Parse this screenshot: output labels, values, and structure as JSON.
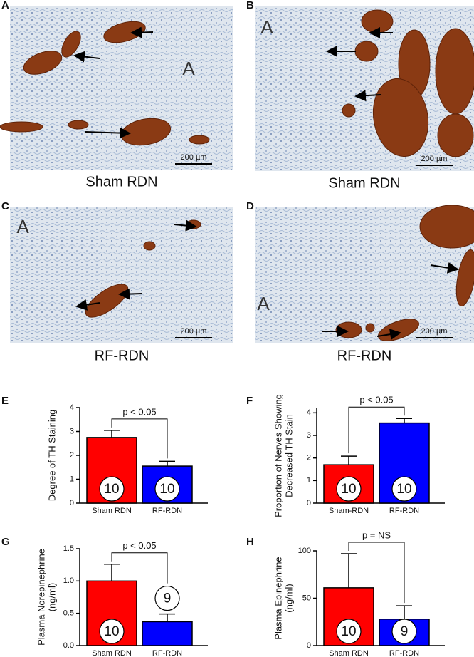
{
  "panels": [
    {
      "letter": "A",
      "caption": "Sham RDN",
      "scale_bar": "200 µm",
      "region_label": "A"
    },
    {
      "letter": "B",
      "caption": "Sham RDN",
      "scale_bar": "200 µm",
      "region_label": "A"
    },
    {
      "letter": "C",
      "caption": "RF-RDN",
      "scale_bar": "200 µm",
      "region_label": "A"
    },
    {
      "letter": "D",
      "caption": "RF-RDN",
      "scale_bar": "200 µm",
      "region_label": "A"
    }
  ],
  "chart_data": [
    {
      "type": "bar",
      "letter": "E",
      "ylabel": [
        "Degree of TH Staining"
      ],
      "categories": [
        "Sham RDN",
        "RF-RDN"
      ],
      "values": [
        2.75,
        1.55
      ],
      "errors": [
        0.3,
        0.2
      ],
      "n": [
        10,
        10
      ],
      "colors": [
        "#ff0000",
        "#0000ff"
      ],
      "annotation": "p < 0.05",
      "ylim": [
        0,
        4
      ],
      "yticks": [
        0,
        1,
        2,
        3,
        4
      ]
    },
    {
      "type": "bar",
      "letter": "F",
      "ylabel": [
        "Proportion of Nerves Showing",
        "Decreased TH Stain"
      ],
      "categories": [
        "Sham-RDN",
        "RF-RDN"
      ],
      "values": [
        1.7,
        3.55
      ],
      "errors": [
        0.38,
        0.2
      ],
      "n": [
        10,
        10
      ],
      "colors": [
        "#ff0000",
        "#0000ff"
      ],
      "annotation": "p < 0.05",
      "ylim": [
        0,
        4.2
      ],
      "yticks": [
        0,
        1,
        2,
        3,
        4
      ]
    },
    {
      "type": "bar",
      "letter": "G",
      "ylabel": [
        "Plasma Norepinephrine",
        "(ng/ml)"
      ],
      "categories": [
        "Sham RDN",
        "RF-RDN"
      ],
      "values": [
        1.0,
        0.37
      ],
      "errors": [
        0.26,
        0.12
      ],
      "n": [
        10,
        9
      ],
      "colors": [
        "#ff0000",
        "#0000ff"
      ],
      "annotation": "p < 0.05",
      "ylim": [
        0,
        1.5
      ],
      "yticks": [
        {
          "value": 0,
          "label": "0.0"
        },
        0.5,
        {
          "value": 1,
          "label": "1.0"
        },
        1.5
      ]
    },
    {
      "type": "bar",
      "letter": "H",
      "ylabel": [
        "Plasma Epinephrine",
        "(ng/ml)"
      ],
      "categories": [
        "Sham RDN",
        "RF-RDN"
      ],
      "values": [
        61,
        28
      ],
      "errors": [
        36,
        14
      ],
      "n": [
        10,
        9
      ],
      "colors": [
        "#ff0000",
        "#0000ff"
      ],
      "annotation": "p = NS",
      "ylim": [
        0,
        100
      ],
      "yticks": [
        0,
        50,
        100
      ]
    }
  ]
}
